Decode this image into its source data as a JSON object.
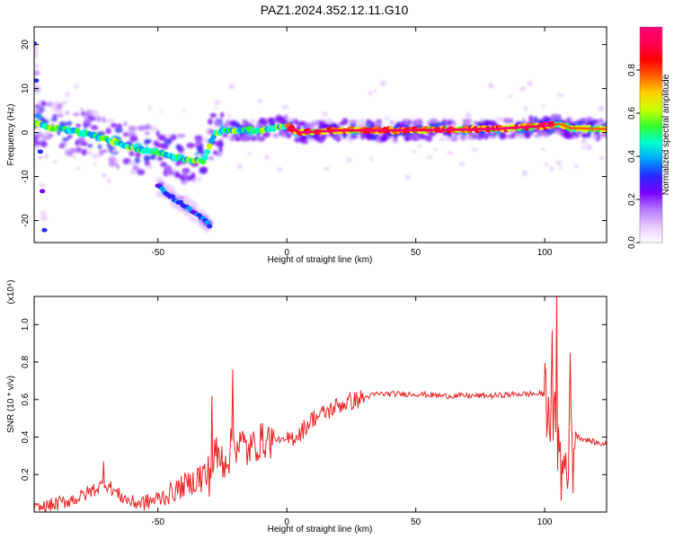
{
  "title": "PAZ1.2024.352.12.11.G10",
  "chart_data": [
    {
      "type": "heatmap",
      "xlabel": "Height of straight line (km)",
      "ylabel": "Frequency (Hz)",
      "xlim": [
        -98,
        124
      ],
      "ylim": [
        -25,
        24
      ],
      "xticks": [
        -50,
        0,
        50,
        100
      ],
      "yticks": [
        -20,
        -10,
        0,
        10,
        20
      ],
      "colorbar": {
        "label": "Normalized spectral amplitude",
        "range": [
          0,
          1
        ],
        "ticks": [
          "0.0",
          "0.2",
          "0.4",
          "0.6",
          "0.8"
        ],
        "colors": [
          "#ffffff",
          "#e6c8ff",
          "#b478ff",
          "#7800ff",
          "#2828ff",
          "#00a0ff",
          "#00ffd2",
          "#32ff32",
          "#c8ff00",
          "#ffd200",
          "#ff6400",
          "#ff0000",
          "#ff0050",
          "#ff0078"
        ]
      },
      "ridges": [
        {
          "name": "main",
          "x": [
            -98,
            -90,
            -80,
            -70,
            -60,
            -50,
            -40,
            -32,
            -28,
            -20,
            -10,
            0,
            5,
            20,
            40,
            60,
            80,
            100,
            106,
            110,
            124
          ],
          "y": [
            2,
            1,
            0,
            -1.5,
            -3.5,
            -4.5,
            -6,
            -6.5,
            0,
            0.5,
            0.6,
            1.5,
            0,
            0.5,
            0.5,
            0.6,
            0.8,
            1.5,
            2,
            1,
            0.8
          ]
        },
        {
          "name": "secondary",
          "x": [
            -50,
            -45,
            -40,
            -35,
            -30
          ],
          "y": [
            -12,
            -14.5,
            -16.5,
            -18.5,
            -21
          ]
        },
        {
          "name": "side-trace",
          "x": [
            -98,
            -96,
            -94
          ],
          "y": [
            20,
            0,
            -22
          ]
        }
      ]
    },
    {
      "type": "line",
      "xlabel": "Height of straight line (km)",
      "ylabel": "SNR (10 * v/v)",
      "y_exponent": "(x10⁴)",
      "xlim": [
        -98,
        124
      ],
      "ylim": [
        0,
        1.15
      ],
      "xticks": [
        -50,
        0,
        50,
        100
      ],
      "yticks": [
        0.2,
        0.4,
        0.6,
        0.8,
        1.0
      ],
      "color": "#ee2222",
      "x": [
        -98,
        -90,
        -80,
        -75,
        -70,
        -65,
        -60,
        -55,
        -50,
        -45,
        -40,
        -35,
        -30,
        -28,
        -25,
        -22,
        -20,
        -15,
        -10,
        -5,
        0,
        5,
        10,
        15,
        20,
        25,
        30,
        35,
        40,
        50,
        60,
        70,
        80,
        90,
        95,
        100,
        102,
        104,
        106,
        108,
        110,
        112,
        115,
        120,
        124
      ],
      "y": [
        0.01,
        0.04,
        0.08,
        0.12,
        0.15,
        0.09,
        0.05,
        0.05,
        0.07,
        0.1,
        0.14,
        0.17,
        0.2,
        0.3,
        0.28,
        0.32,
        0.38,
        0.33,
        0.38,
        0.39,
        0.38,
        0.42,
        0.5,
        0.53,
        0.57,
        0.59,
        0.61,
        0.63,
        0.63,
        0.63,
        0.62,
        0.62,
        0.62,
        0.63,
        0.63,
        0.63,
        0.55,
        0.45,
        0.3,
        0.25,
        0.38,
        0.41,
        0.39,
        0.37,
        0.36
      ],
      "spikes": [
        {
          "x": -71,
          "y": 0.27
        },
        {
          "x": -29,
          "y": 0.62
        },
        {
          "x": -21,
          "y": 0.76
        },
        {
          "x": 103,
          "y": 0.97
        },
        {
          "x": 104.5,
          "y": 1.15
        },
        {
          "x": 106.5,
          "y": 0.06
        },
        {
          "x": 110,
          "y": 0.85
        },
        {
          "x": 111,
          "y": 0.1
        }
      ]
    }
  ]
}
